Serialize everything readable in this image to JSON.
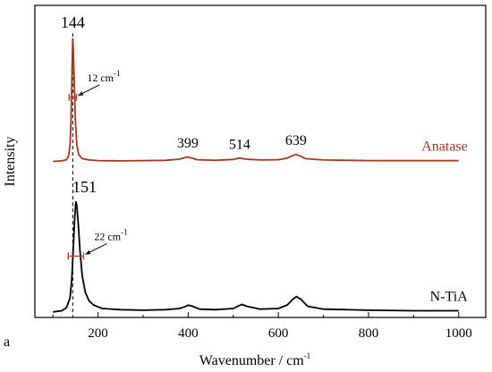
{
  "chart_data": {
    "type": "line",
    "panel_label": "a",
    "xlabel": "Wavenumber / cm",
    "xlabel_sup": "-1",
    "ylabel": "Intensity",
    "xlim": [
      60,
      1060
    ],
    "xticks": [
      200,
      400,
      600,
      800,
      1000
    ],
    "xtick_labels": [
      "200",
      "400",
      "600",
      "800",
      "1000"
    ],
    "yticks_shown": false,
    "reference_line_x": 144,
    "series": [
      {
        "name": "Anatase",
        "color": "#a0391f",
        "baseline": 0.54,
        "points": [
          [
            100,
            0.54
          ],
          [
            120,
            0.542
          ],
          [
            130,
            0.546
          ],
          [
            135,
            0.56
          ],
          [
            138,
            0.6
          ],
          [
            140,
            0.68
          ],
          [
            142,
            0.82
          ],
          [
            143,
            0.91
          ],
          [
            144,
            0.98
          ],
          [
            145,
            0.96
          ],
          [
            146,
            0.9
          ],
          [
            148,
            0.78
          ],
          [
            150,
            0.68
          ],
          [
            153,
            0.6
          ],
          [
            157,
            0.565
          ],
          [
            165,
            0.55
          ],
          [
            180,
            0.545
          ],
          [
            200,
            0.543
          ],
          [
            250,
            0.542
          ],
          [
            300,
            0.543
          ],
          [
            350,
            0.544
          ],
          [
            380,
            0.548
          ],
          [
            390,
            0.552
          ],
          [
            399,
            0.556
          ],
          [
            408,
            0.552
          ],
          [
            420,
            0.546
          ],
          [
            460,
            0.544
          ],
          [
            500,
            0.547
          ],
          [
            514,
            0.552
          ],
          [
            528,
            0.548
          ],
          [
            560,
            0.545
          ],
          [
            600,
            0.546
          ],
          [
            620,
            0.552
          ],
          [
            630,
            0.56
          ],
          [
            639,
            0.565
          ],
          [
            648,
            0.56
          ],
          [
            660,
            0.55
          ],
          [
            700,
            0.545
          ],
          [
            800,
            0.543
          ],
          [
            900,
            0.543
          ],
          [
            1000,
            0.543
          ]
        ]
      },
      {
        "name": "N-TiA",
        "color": "#000000",
        "baseline": 0.0,
        "points": [
          [
            100,
            0.0
          ],
          [
            120,
            0.004
          ],
          [
            130,
            0.015
          ],
          [
            138,
            0.05
          ],
          [
            142,
            0.12
          ],
          [
            145,
            0.22
          ],
          [
            148,
            0.33
          ],
          [
            150,
            0.38
          ],
          [
            151,
            0.395
          ],
          [
            153,
            0.38
          ],
          [
            156,
            0.32
          ],
          [
            160,
            0.22
          ],
          [
            165,
            0.13
          ],
          [
            172,
            0.07
          ],
          [
            180,
            0.04
          ],
          [
            190,
            0.025
          ],
          [
            200,
            0.018
          ],
          [
            210,
            0.012
          ],
          [
            250,
            0.008
          ],
          [
            300,
            0.006
          ],
          [
            350,
            0.008
          ],
          [
            380,
            0.012
          ],
          [
            392,
            0.018
          ],
          [
            400,
            0.024
          ],
          [
            410,
            0.02
          ],
          [
            425,
            0.01
          ],
          [
            460,
            0.008
          ],
          [
            500,
            0.012
          ],
          [
            510,
            0.02
          ],
          [
            519,
            0.027
          ],
          [
            530,
            0.02
          ],
          [
            560,
            0.01
          ],
          [
            600,
            0.012
          ],
          [
            620,
            0.025
          ],
          [
            632,
            0.045
          ],
          [
            640,
            0.055
          ],
          [
            650,
            0.045
          ],
          [
            665,
            0.02
          ],
          [
            700,
            0.01
          ],
          [
            800,
            0.006
          ],
          [
            900,
            0.004
          ],
          [
            1000,
            0.004
          ]
        ]
      }
    ],
    "peak_labels": [
      {
        "text": "144",
        "x": 144,
        "y": 1.02,
        "style": "big"
      },
      {
        "text": "399",
        "x": 399,
        "y": 0.59,
        "style": "normal"
      },
      {
        "text": "514",
        "x": 514,
        "y": 0.585,
        "style": "normal"
      },
      {
        "text": "639",
        "x": 639,
        "y": 0.6,
        "style": "normal"
      },
      {
        "text": "151",
        "x": 170,
        "y": 0.43,
        "style": "big"
      }
    ],
    "fwhm_annotations": [
      {
        "text": "12 cm",
        "sup": "-1",
        "x1": 136,
        "x2": 152,
        "y": 0.77,
        "series": "Anatase"
      },
      {
        "text": "22 cm",
        "sup": "-1",
        "x1": 134,
        "x2": 168,
        "y": 0.2,
        "series": "N-TiA"
      }
    ]
  }
}
